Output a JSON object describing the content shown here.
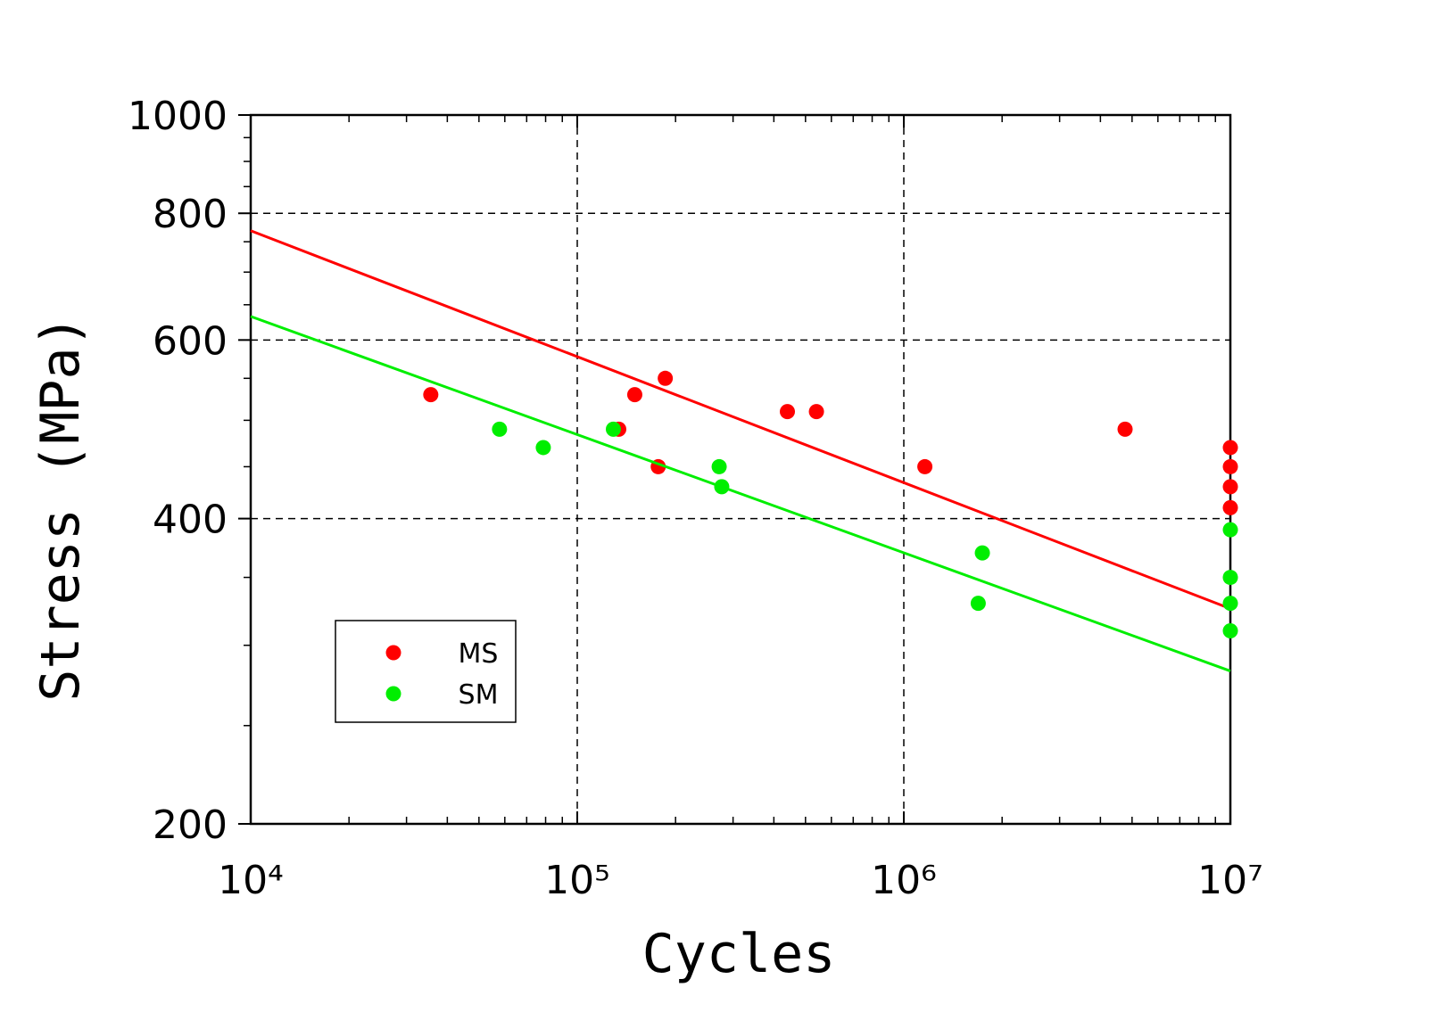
{
  "chart_data": {
    "type": "scatter",
    "x_label": "Cycles",
    "y_label": "Stress (MPa)",
    "log_x": true,
    "log_y": true,
    "grid": true,
    "legend": "lower left",
    "xlim": [
      10000,
      10000000
    ],
    "ylim": [
      200,
      1000
    ],
    "xticks": [
      {
        "value": 10000,
        "label": "10⁴"
      },
      {
        "value": 100000,
        "label": "10⁵"
      },
      {
        "value": 1000000,
        "label": "10⁶"
      },
      {
        "value": 10000000,
        "label": "10⁷"
      }
    ],
    "yticks": [
      200,
      400,
      600,
      800,
      1000
    ],
    "xminorticks": [
      20000,
      30000,
      40000,
      50000,
      60000,
      70000,
      80000,
      90000,
      200000,
      300000,
      400000,
      500000,
      600000,
      700000,
      800000,
      900000,
      2000000,
      3000000,
      4000000,
      5000000,
      6000000,
      7000000,
      8000000,
      9000000
    ],
    "yminorticks": [
      250,
      300,
      350,
      450,
      500,
      550,
      650,
      700,
      750,
      850,
      900,
      950
    ],
    "series": [
      {
        "name": "MS",
        "color": "#ff0000",
        "x": [
          35600,
          134000,
          150000,
          186000,
          177000,
          440000,
          540000,
          1160000,
          4760000,
          10000000,
          10000000,
          10000000,
          10000000
        ],
        "values": [
          530,
          490,
          530,
          550,
          450,
          510,
          510,
          450,
          490,
          470,
          450,
          430,
          410
        ],
        "fit": {
          "x": [
            10000,
            10000000
          ],
          "values": [
            769,
            326
          ]
        }
      },
      {
        "name": "SM",
        "color": "#00ee00",
        "x": [
          57800,
          78700,
          129000,
          272000,
          277000,
          1740000,
          1690000,
          10000000,
          10000000,
          10000000,
          10000000
        ],
        "values": [
          490,
          470,
          490,
          450,
          430,
          370,
          330,
          390,
          350,
          330,
          310
        ],
        "fit": {
          "x": [
            10000,
            10000000
          ],
          "values": [
            633,
            283
          ]
        }
      }
    ]
  }
}
